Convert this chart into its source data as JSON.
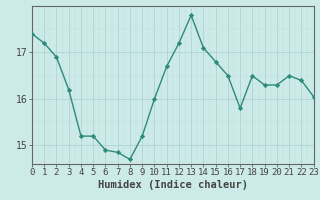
{
  "x": [
    0,
    1,
    2,
    3,
    4,
    5,
    6,
    7,
    8,
    9,
    10,
    11,
    12,
    13,
    14,
    15,
    16,
    17,
    18,
    19,
    20,
    21,
    22,
    23
  ],
  "y": [
    17.4,
    17.2,
    16.9,
    16.2,
    15.2,
    15.2,
    14.9,
    14.85,
    14.7,
    15.2,
    16.0,
    16.7,
    17.2,
    17.8,
    17.1,
    16.8,
    16.5,
    15.8,
    16.5,
    16.3,
    16.3,
    16.5,
    16.4,
    16.05
  ],
  "line_color": "#2e8b7a",
  "marker": "D",
  "markersize": 2.2,
  "linewidth": 1.0,
  "bg_color": "#cceae8",
  "grid_color_major": "#aacfcd",
  "grid_color_minor": "#bbdcda",
  "xlabel": "Humidex (Indice chaleur)",
  "yticks": [
    15,
    16,
    17
  ],
  "xticks": [
    0,
    1,
    2,
    3,
    4,
    5,
    6,
    7,
    8,
    9,
    10,
    11,
    12,
    13,
    14,
    15,
    16,
    17,
    18,
    19,
    20,
    21,
    22,
    23
  ],
  "xlim": [
    0,
    23
  ],
  "ylim": [
    14.6,
    18.0
  ],
  "xlabel_fontsize": 7.5,
  "tick_fontsize": 6.5,
  "axis_color": "#444444",
  "spine_color": "#666666"
}
